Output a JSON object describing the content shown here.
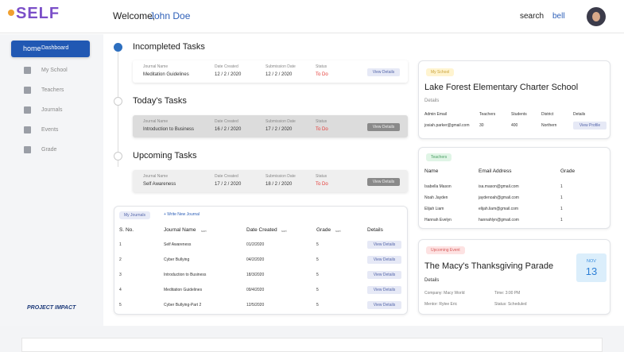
{
  "header": {
    "logo": "SELF",
    "welcome": "Welcome,",
    "user": "John Doe",
    "search": "search",
    "bell": "bell"
  },
  "sidebar": {
    "active_icon": "home",
    "active": "Dashboard",
    "items": [
      "My School",
      "Teachers",
      "Journals",
      "Events",
      "Grade"
    ],
    "footer_logo": "PROJECT IMPACT"
  },
  "tasks": [
    {
      "title": "Incompleted Tasks",
      "columns": [
        "Journal Name",
        "Date Created",
        "Submission Date",
        "Status"
      ],
      "row": [
        "Meditation Guidelines",
        "12 / 2 / 2020",
        "12 / 2 / 2020",
        "To Do"
      ],
      "action": "View Details"
    },
    {
      "title": "Today's Tasks",
      "columns": [
        "Journal Name",
        "Date Created",
        "Submission Date",
        "Status"
      ],
      "row": [
        "Introduction to Business",
        "16 / 2 / 2020",
        "17 / 2 / 2020",
        "To Do"
      ],
      "action": "View Details"
    },
    {
      "title": "Upcoming Tasks",
      "columns": [
        "Journal Name",
        "Date Created",
        "Submission Date",
        "Status"
      ],
      "row": [
        "Self Awareness",
        "17 / 2 / 2020",
        "18 / 2 / 2020",
        "To Do"
      ],
      "action": "View Details"
    }
  ],
  "journals": {
    "tab": "My Journals",
    "new": "+ Write New Journal",
    "columns": [
      "S. No.",
      "Journal Name",
      "Date Created",
      "Grade",
      "Details"
    ],
    "sort": "sort",
    "rows": [
      [
        1,
        "Self Awareness",
        "01/2/2020",
        5,
        "View Details"
      ],
      [
        2,
        "Cyber Bullying",
        "04/2/2020",
        5,
        "View Details"
      ],
      [
        3,
        "Introduction to Business",
        "18/3/2020",
        5,
        "View Details"
      ],
      [
        4,
        "Meditation Guidelines",
        "09/4/2020",
        5,
        "View Details"
      ],
      [
        5,
        "Cyber Bullying-Part 2",
        "12/5/2020",
        5,
        "View Details"
      ]
    ]
  },
  "school": {
    "badge": "My School",
    "name": "Lake Forest Elementary Charter School",
    "details": "Details",
    "columns": [
      "Admin Email",
      "Teachers",
      "Students",
      "District",
      "Details"
    ],
    "row": [
      "josiah.parker@gmail.com",
      30,
      400,
      "Northern",
      "View Profile"
    ]
  },
  "teachers": {
    "badge": "Teachers",
    "columns": [
      "Name",
      "Email Address",
      "Grade"
    ],
    "rows": [
      [
        "Isabella Mason",
        "isa.mason@gmail.com",
        1
      ],
      [
        "Noah Jayden",
        "jaydenoah@gmail.com",
        1
      ],
      [
        "Elijah Liam",
        "elijah.liam@gmail.com",
        1
      ],
      [
        "Hannah Evelyn",
        "hannahlyn@gmail.com",
        1
      ]
    ]
  },
  "event": {
    "badge": "Upcoming Event",
    "title": "The Macy's Thanksgiving Parade",
    "details": "Details",
    "company": "Company: Macy World",
    "time": "Time: 3:00 PM",
    "mentor": "Mentor: Rylee Eric",
    "status": "Status: Scheduled",
    "month": "NOV",
    "day": 13
  }
}
